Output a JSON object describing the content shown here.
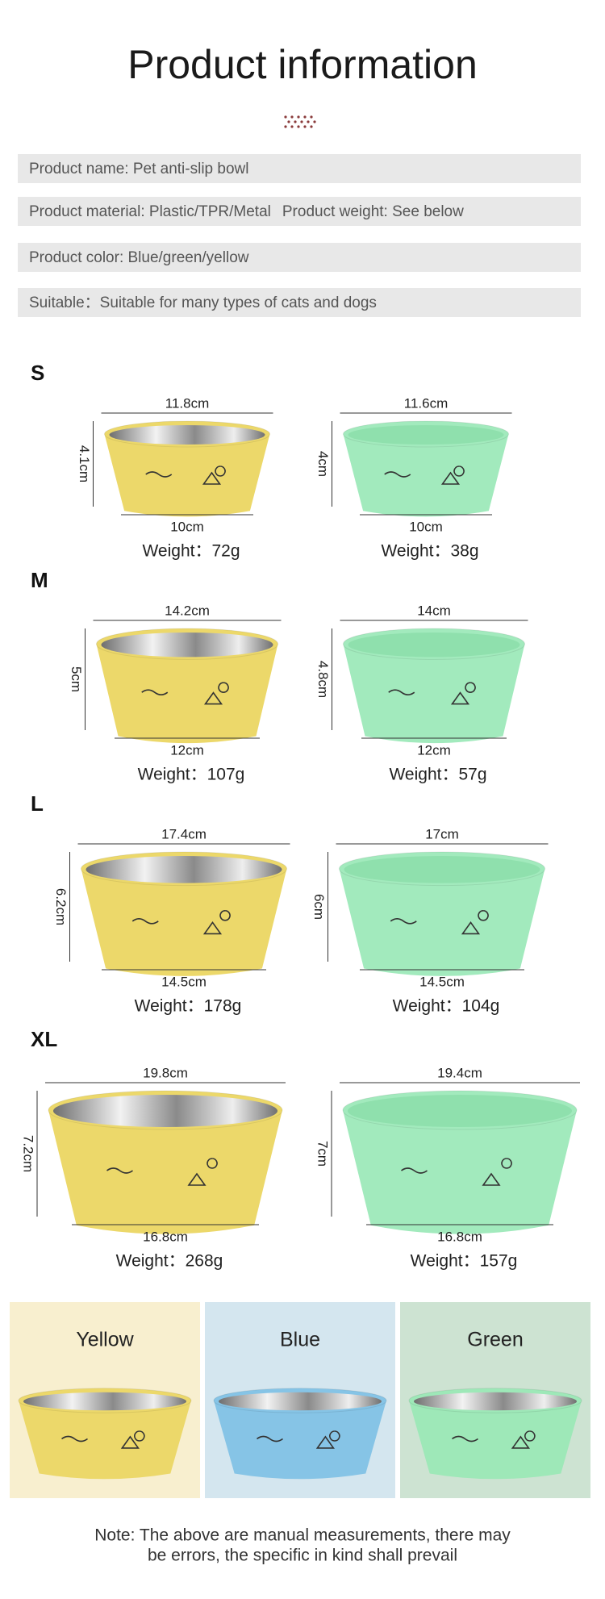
{
  "header": {
    "title": "Product information"
  },
  "info": [
    [
      "Product name: Pet anti-slip bowl"
    ],
    [
      "Product material: Plastic/TPR/Metal",
      "Product weight: See below"
    ],
    [
      "Product color: Blue/green/yellow"
    ],
    [
      "Suitable：Suitable for many types of cats and dogs"
    ]
  ],
  "sizes": [
    {
      "label": "S",
      "bowls": [
        {
          "top": "11.8cm",
          "height": "4.1cm",
          "bottom": "10cm",
          "weight": "Weight：72g"
        },
        {
          "top": "11.6cm",
          "height": "4cm",
          "bottom": "10cm",
          "weight": "Weight：38g"
        }
      ]
    },
    {
      "label": "M",
      "bowls": [
        {
          "top": "14.2cm",
          "height": "5cm",
          "bottom": "12cm",
          "weight": "Weight：107g"
        },
        {
          "top": "14cm",
          "height": "4.8cm",
          "bottom": "12cm",
          "weight": "Weight：57g"
        }
      ]
    },
    {
      "label": "L",
      "bowls": [
        {
          "top": "17.4cm",
          "height": "6.2cm",
          "bottom": "14.5cm",
          "weight": "Weight：178g"
        },
        {
          "top": "17cm",
          "height": "6cm",
          "bottom": "14.5cm",
          "weight": "Weight：104g"
        }
      ]
    },
    {
      "label": "XL",
      "bowls": [
        {
          "top": "19.8cm",
          "height": "7.2cm",
          "bottom": "16.8cm",
          "weight": "Weight：268g"
        },
        {
          "top": "19.4cm",
          "height": "7cm",
          "bottom": "16.8cm",
          "weight": "Weight：157g"
        }
      ]
    }
  ],
  "colors": [
    "Yellow",
    "Blue",
    "Green"
  ],
  "note": [
    "Note: The above are manual measurements, there may",
    "be errors, the specific in kind shall prevail"
  ]
}
